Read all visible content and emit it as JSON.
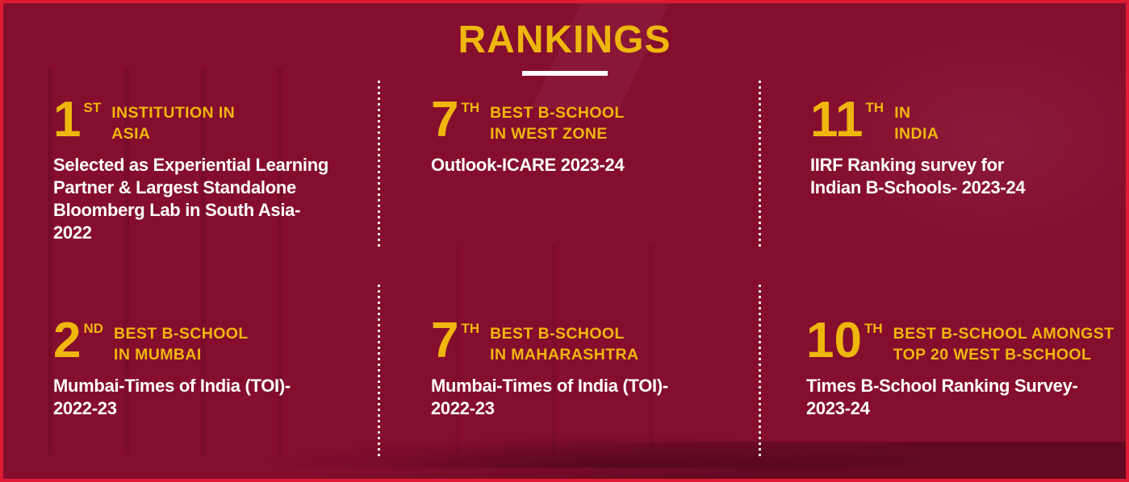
{
  "theme": {
    "background": "#850D2E",
    "border": "#DE1B33",
    "accent_gold": "#EFB70D",
    "text_white": "#FFFFFF"
  },
  "title": "RANKINGS",
  "rankings": [
    {
      "rank": "1",
      "suffix": "ST",
      "heading_lines": [
        "INSTITUTION IN",
        "ASIA"
      ],
      "description_lines": [
        "Selected as Experiential Learning",
        "Partner & Largest Standalone",
        "Bloomberg Lab in South Asia-",
        "2022"
      ]
    },
    {
      "rank": "7",
      "suffix": "TH",
      "heading_lines": [
        "BEST B-SCHOOL",
        "IN WEST ZONE"
      ],
      "description_lines": [
        "Outlook-ICARE 2023-24"
      ]
    },
    {
      "rank": "11",
      "suffix": "TH",
      "heading_lines": [
        "IN",
        "INDIA"
      ],
      "description_lines": [
        "IIRF Ranking survey for",
        "Indian B-Schools- 2023-24"
      ]
    },
    {
      "rank": "2",
      "suffix": "ND",
      "heading_lines": [
        "BEST B-SCHOOL",
        "IN MUMBAI"
      ],
      "description_lines": [
        "Mumbai-Times of India (TOI)-",
        "2022-23"
      ]
    },
    {
      "rank": "7",
      "suffix": "TH",
      "heading_lines": [
        "BEST B-SCHOOL",
        "IN MAHARASHTRA"
      ],
      "description_lines": [
        "Mumbai-Times of India (TOI)-",
        "2022-23"
      ]
    },
    {
      "rank": "10",
      "suffix": "TH",
      "heading_lines": [
        "BEST B-SCHOOL AMONGST",
        "TOP 20 WEST B-SCHOOL"
      ],
      "description_lines": [
        "Times B-School Ranking Survey-",
        " 2023-24"
      ]
    }
  ]
}
